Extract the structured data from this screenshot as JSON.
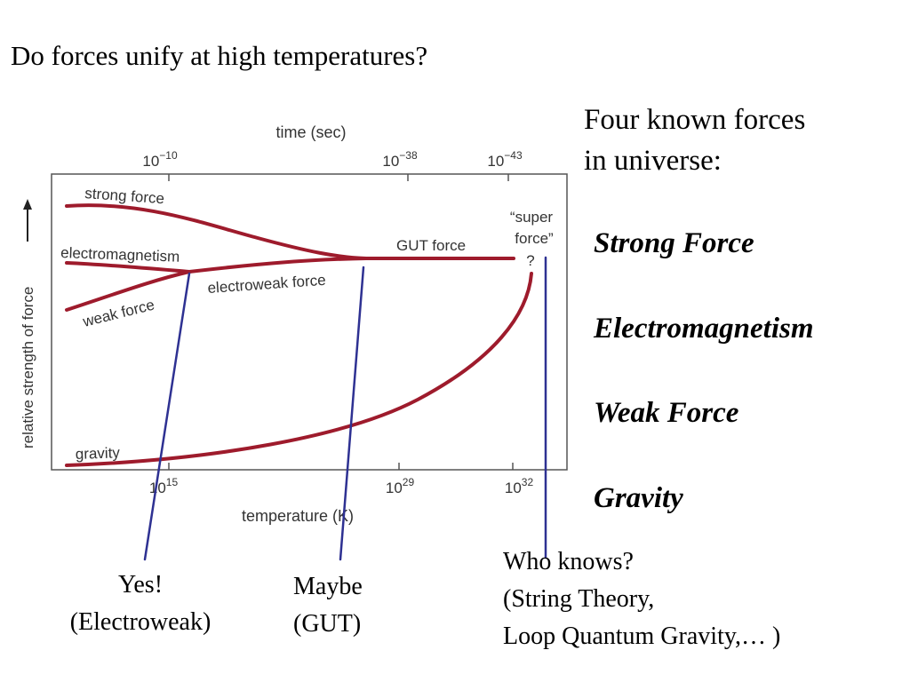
{
  "title": "Do forces unify at high temperatures?",
  "side_panel": {
    "heading_line1": "Four known forces",
    "heading_line2": "in universe:",
    "forces": [
      "Strong Force",
      "Electromagnetism",
      "Weak Force",
      "Gravity"
    ]
  },
  "diagram": {
    "top_axis_label": "time (sec)",
    "top_ticks": [
      {
        "base": "10",
        "exp": "−10"
      },
      {
        "base": "10",
        "exp": "−38"
      },
      {
        "base": "10",
        "exp": "−43"
      }
    ],
    "bottom_axis_label": "temperature (K)",
    "bottom_ticks": [
      {
        "base": "10",
        "exp": "15"
      },
      {
        "base": "10",
        "exp": "29"
      },
      {
        "base": "10",
        "exp": "32"
      }
    ],
    "y_axis_label": "relative strength of force",
    "curve_labels": {
      "strong": "strong force",
      "em": "electromagnetism",
      "weak": "weak force",
      "electroweak": "electroweak force",
      "gut": "GUT force",
      "superforce_line1": "“super",
      "superforce_line2": "force”",
      "superforce_q": "?",
      "gravity": "gravity"
    },
    "colors": {
      "curve": "#9e1b2c",
      "pointer": "#2e3192",
      "frame": "#555555"
    }
  },
  "annotations": {
    "electroweak": {
      "line1": "Yes!",
      "line2": "(Electroweak)"
    },
    "gut": {
      "line1": "Maybe",
      "line2": "(GUT)"
    },
    "super": {
      "line1": "Who knows?",
      "line2": "(String Theory,",
      "line3": "Loop Quantum Gravity,… )"
    }
  }
}
